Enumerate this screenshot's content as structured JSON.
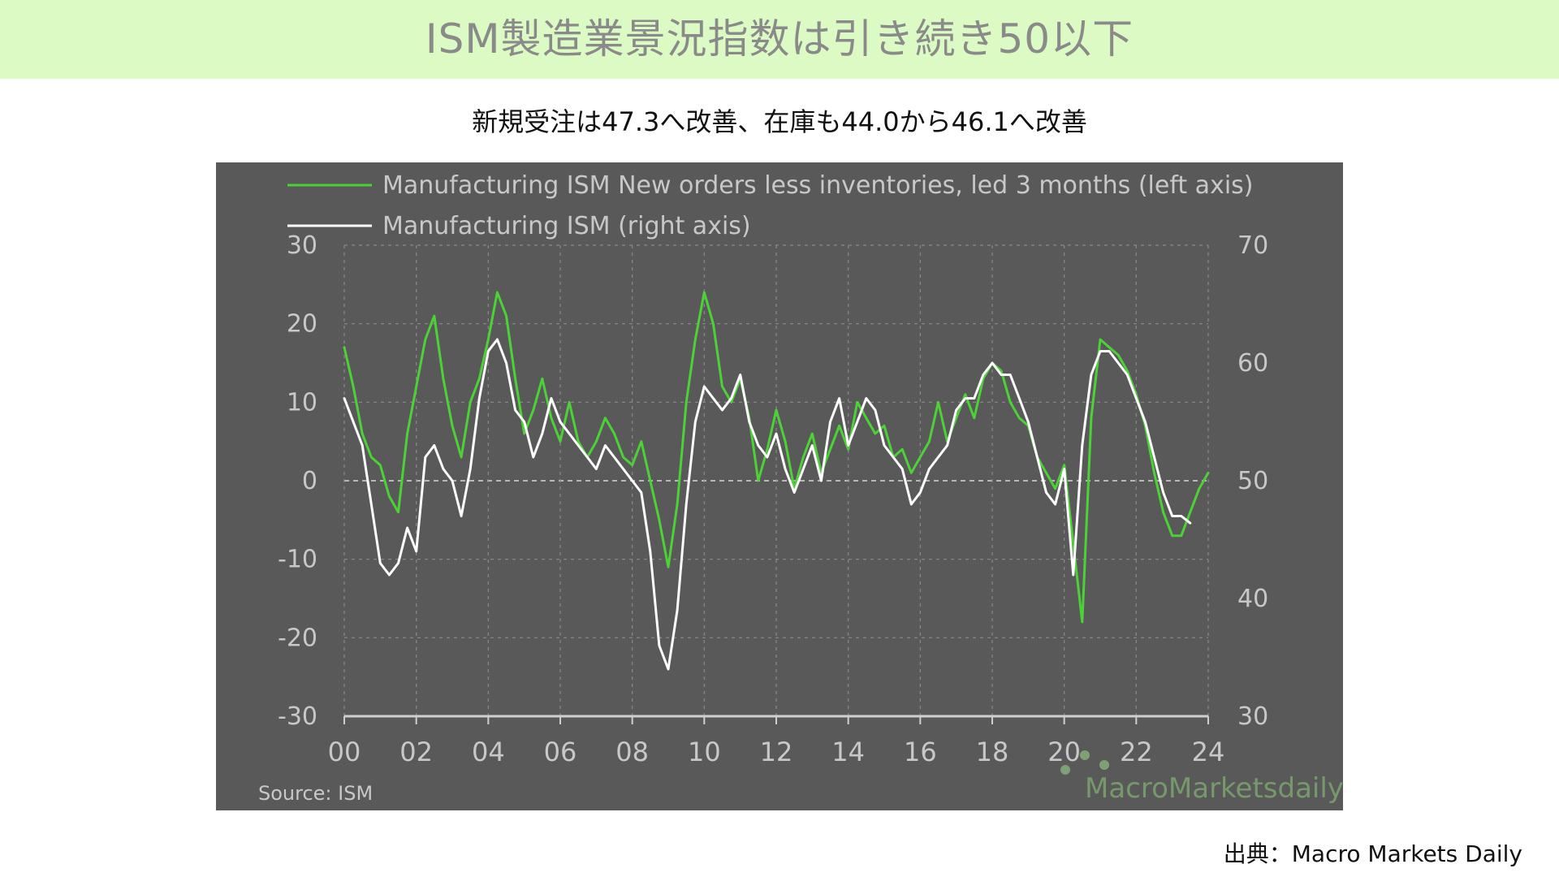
{
  "page": {
    "title": "ISM製造業景況指数は引き続き50以下",
    "subtitle": "新規受注は47.3へ改善、在庫も44.0から46.1へ改善",
    "credit": "出典：Macro Markets Daily"
  },
  "colors": {
    "banner_bg": "#dcfac4",
    "panel_bg": "#595959",
    "series_green": "#4cd137",
    "series_white": "#ffffff",
    "axis_text": "#c8c8c8"
  },
  "chart_data": {
    "type": "line",
    "title": "",
    "xlabel": "",
    "ylabel": "",
    "legend": "top-left",
    "grid": true,
    "source_label": "Source:  ISM",
    "watermark": "MacroMarketsdaily",
    "x_ticks": [
      "00",
      "02",
      "04",
      "06",
      "08",
      "10",
      "12",
      "14",
      "16",
      "18",
      "20",
      "22",
      "24"
    ],
    "x_range": [
      2000,
      2024
    ],
    "y_left": {
      "ticks": [
        "30",
        "20",
        "10",
        "0",
        "-10",
        "-20",
        "-30"
      ],
      "range": [
        -30,
        30
      ]
    },
    "y_right": {
      "ticks": [
        "70",
        "60",
        "50",
        "40",
        "30"
      ],
      "range": [
        30,
        70
      ]
    },
    "zero_line": 0,
    "series": [
      {
        "name": "Manufacturing ISM New orders less inventories, led 3 months (left axis)",
        "axis": "left",
        "color": "#4cd137",
        "points": [
          [
            2000.0,
            17
          ],
          [
            2000.25,
            12
          ],
          [
            2000.5,
            6
          ],
          [
            2000.75,
            3
          ],
          [
            2001.0,
            2
          ],
          [
            2001.25,
            -2
          ],
          [
            2001.5,
            -4
          ],
          [
            2001.75,
            6
          ],
          [
            2002.0,
            12
          ],
          [
            2002.25,
            18
          ],
          [
            2002.5,
            21
          ],
          [
            2002.75,
            13
          ],
          [
            2003.0,
            7
          ],
          [
            2003.25,
            3
          ],
          [
            2003.5,
            10
          ],
          [
            2003.75,
            13
          ],
          [
            2004.0,
            18
          ],
          [
            2004.25,
            24
          ],
          [
            2004.5,
            21
          ],
          [
            2004.75,
            13
          ],
          [
            2005.0,
            6
          ],
          [
            2005.25,
            9
          ],
          [
            2005.5,
            13
          ],
          [
            2005.75,
            8
          ],
          [
            2006.0,
            5
          ],
          [
            2006.25,
            10
          ],
          [
            2006.5,
            5
          ],
          [
            2006.75,
            3
          ],
          [
            2007.0,
            5
          ],
          [
            2007.25,
            8
          ],
          [
            2007.5,
            6
          ],
          [
            2007.75,
            3
          ],
          [
            2008.0,
            2
          ],
          [
            2008.25,
            5
          ],
          [
            2008.5,
            0
          ],
          [
            2008.75,
            -5
          ],
          [
            2009.0,
            -11
          ],
          [
            2009.25,
            -3
          ],
          [
            2009.5,
            10
          ],
          [
            2009.75,
            18
          ],
          [
            2010.0,
            24
          ],
          [
            2010.25,
            20
          ],
          [
            2010.5,
            12
          ],
          [
            2010.75,
            10
          ],
          [
            2011.0,
            13
          ],
          [
            2011.25,
            8
          ],
          [
            2011.5,
            0
          ],
          [
            2011.75,
            4
          ],
          [
            2012.0,
            9
          ],
          [
            2012.25,
            5
          ],
          [
            2012.5,
            -1
          ],
          [
            2012.75,
            3
          ],
          [
            2013.0,
            6
          ],
          [
            2013.25,
            1
          ],
          [
            2013.5,
            4
          ],
          [
            2013.75,
            7
          ],
          [
            2014.0,
            4
          ],
          [
            2014.25,
            10
          ],
          [
            2014.5,
            8
          ],
          [
            2014.75,
            6
          ],
          [
            2015.0,
            7
          ],
          [
            2015.25,
            3
          ],
          [
            2015.5,
            4
          ],
          [
            2015.75,
            1
          ],
          [
            2016.0,
            3
          ],
          [
            2016.25,
            5
          ],
          [
            2016.5,
            10
          ],
          [
            2016.75,
            5
          ],
          [
            2017.0,
            8
          ],
          [
            2017.25,
            11
          ],
          [
            2017.5,
            8
          ],
          [
            2017.75,
            13
          ],
          [
            2018.0,
            15
          ],
          [
            2018.25,
            14
          ],
          [
            2018.5,
            10
          ],
          [
            2018.75,
            8
          ],
          [
            2019.0,
            7
          ],
          [
            2019.25,
            3
          ],
          [
            2019.5,
            1
          ],
          [
            2019.75,
            -1
          ],
          [
            2020.0,
            2
          ],
          [
            2020.25,
            -8
          ],
          [
            2020.5,
            -18
          ],
          [
            2020.75,
            8
          ],
          [
            2021.0,
            18
          ],
          [
            2021.25,
            17
          ],
          [
            2021.5,
            16
          ],
          [
            2021.75,
            14
          ],
          [
            2022.0,
            11
          ],
          [
            2022.25,
            7
          ],
          [
            2022.5,
            1
          ],
          [
            2022.75,
            -4
          ],
          [
            2023.0,
            -7
          ],
          [
            2023.25,
            -7
          ],
          [
            2023.5,
            -4
          ],
          [
            2023.75,
            -1
          ],
          [
            2024.0,
            1
          ]
        ]
      },
      {
        "name": "Manufacturing ISM (right axis)",
        "axis": "right",
        "color": "#ffffff",
        "points": [
          [
            2000.0,
            57
          ],
          [
            2000.25,
            55
          ],
          [
            2000.5,
            53
          ],
          [
            2000.75,
            48
          ],
          [
            2001.0,
            43
          ],
          [
            2001.25,
            42
          ],
          [
            2001.5,
            43
          ],
          [
            2001.75,
            46
          ],
          [
            2002.0,
            44
          ],
          [
            2002.25,
            52
          ],
          [
            2002.5,
            53
          ],
          [
            2002.75,
            51
          ],
          [
            2003.0,
            50
          ],
          [
            2003.25,
            47
          ],
          [
            2003.5,
            51
          ],
          [
            2003.75,
            57
          ],
          [
            2004.0,
            61
          ],
          [
            2004.25,
            62
          ],
          [
            2004.5,
            60
          ],
          [
            2004.75,
            56
          ],
          [
            2005.0,
            55
          ],
          [
            2005.25,
            52
          ],
          [
            2005.5,
            54
          ],
          [
            2005.75,
            57
          ],
          [
            2006.0,
            55
          ],
          [
            2006.25,
            54
          ],
          [
            2006.5,
            53
          ],
          [
            2006.75,
            52
          ],
          [
            2007.0,
            51
          ],
          [
            2007.25,
            53
          ],
          [
            2007.5,
            52
          ],
          [
            2007.75,
            51
          ],
          [
            2008.0,
            50
          ],
          [
            2008.25,
            49
          ],
          [
            2008.5,
            44
          ],
          [
            2008.75,
            36
          ],
          [
            2009.0,
            34
          ],
          [
            2009.25,
            39
          ],
          [
            2009.5,
            48
          ],
          [
            2009.75,
            55
          ],
          [
            2010.0,
            58
          ],
          [
            2010.25,
            57
          ],
          [
            2010.5,
            56
          ],
          [
            2010.75,
            57
          ],
          [
            2011.0,
            59
          ],
          [
            2011.25,
            55
          ],
          [
            2011.5,
            53
          ],
          [
            2011.75,
            52
          ],
          [
            2012.0,
            54
          ],
          [
            2012.25,
            51
          ],
          [
            2012.5,
            49
          ],
          [
            2012.75,
            51
          ],
          [
            2013.0,
            53
          ],
          [
            2013.25,
            50
          ],
          [
            2013.5,
            55
          ],
          [
            2013.75,
            57
          ],
          [
            2014.0,
            53
          ],
          [
            2014.25,
            55
          ],
          [
            2014.5,
            57
          ],
          [
            2014.75,
            56
          ],
          [
            2015.0,
            53
          ],
          [
            2015.25,
            52
          ],
          [
            2015.5,
            51
          ],
          [
            2015.75,
            48
          ],
          [
            2016.0,
            49
          ],
          [
            2016.25,
            51
          ],
          [
            2016.5,
            52
          ],
          [
            2016.75,
            53
          ],
          [
            2017.0,
            56
          ],
          [
            2017.25,
            57
          ],
          [
            2017.5,
            57
          ],
          [
            2017.75,
            59
          ],
          [
            2018.0,
            60
          ],
          [
            2018.25,
            59
          ],
          [
            2018.5,
            59
          ],
          [
            2018.75,
            57
          ],
          [
            2019.0,
            55
          ],
          [
            2019.25,
            52
          ],
          [
            2019.5,
            49
          ],
          [
            2019.75,
            48
          ],
          [
            2020.0,
            51
          ],
          [
            2020.25,
            42
          ],
          [
            2020.5,
            53
          ],
          [
            2020.75,
            59
          ],
          [
            2021.0,
            61
          ],
          [
            2021.25,
            61
          ],
          [
            2021.5,
            60
          ],
          [
            2021.75,
            59
          ],
          [
            2022.0,
            57
          ],
          [
            2022.25,
            55
          ],
          [
            2022.5,
            52
          ],
          [
            2022.75,
            49
          ],
          [
            2023.0,
            47
          ],
          [
            2023.25,
            47
          ],
          [
            2023.5,
            46.4
          ]
        ]
      }
    ]
  }
}
